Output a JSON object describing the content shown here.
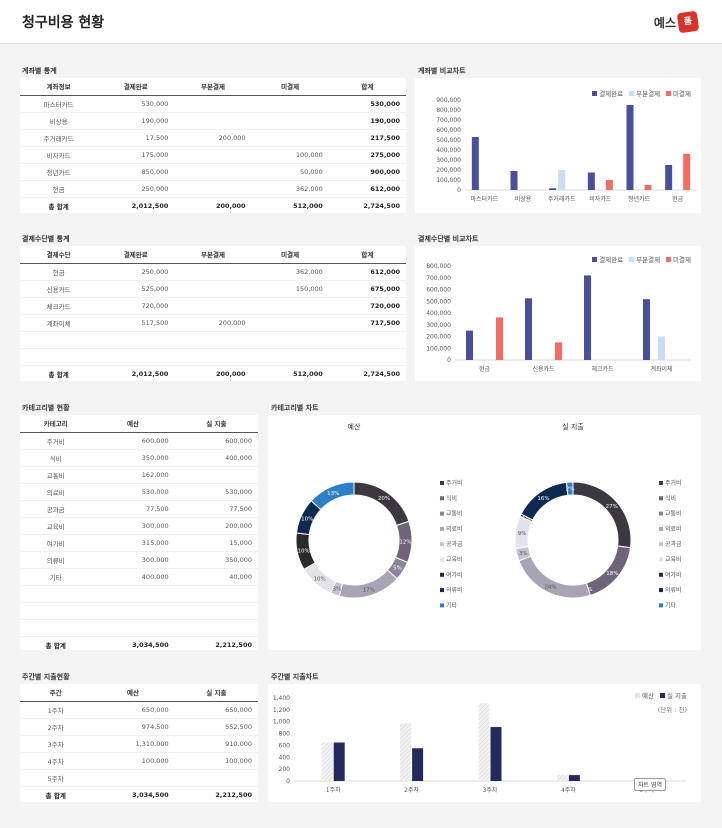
{
  "page": {
    "title": "청구비용 현황",
    "logo_text": "예스",
    "logo_badge": "폼"
  },
  "colors": {
    "complete": "#4a4f9a",
    "partial": "#c8ddf5",
    "unpaid": "#f26c63",
    "actual": "#252a5c",
    "budget": "#e6e6e6"
  },
  "account_stats": {
    "title": "계좌별 통계",
    "headers": [
      "계좌정보",
      "결제완료",
      "부분결제",
      "미결제",
      "합계"
    ],
    "rows": [
      [
        "마스터카드",
        "530,000",
        "",
        "",
        "530,000"
      ],
      [
        "비상용",
        "190,000",
        "",
        "",
        "190,000"
      ],
      [
        "주거래카드",
        "17,500",
        "200,000",
        "",
        "217,500"
      ],
      [
        "비자카드",
        "175,000",
        "",
        "100,000",
        "275,000"
      ],
      [
        "청년카드",
        "850,000",
        "",
        "50,000",
        "900,000"
      ],
      [
        "현금",
        "250,000",
        "",
        "362,000",
        "612,000"
      ]
    ],
    "total": [
      "총 합계",
      "2,012,500",
      "200,000",
      "512,000",
      "2,724,500"
    ]
  },
  "account_chart": {
    "title": "계좌별 비교차트",
    "chart_data": {
      "type": "bar",
      "categories": [
        "마스터카드",
        "비상용",
        "주거래카드",
        "비자카드",
        "청년카드",
        "현금"
      ],
      "series": [
        {
          "name": "결제완료",
          "values": [
            530000,
            190000,
            17500,
            175000,
            850000,
            250000
          ]
        },
        {
          "name": "부분결제",
          "values": [
            0,
            0,
            200000,
            0,
            0,
            0
          ]
        },
        {
          "name": "미결제",
          "values": [
            0,
            0,
            0,
            100000,
            50000,
            362000
          ]
        }
      ],
      "ylim": [
        0,
        900000
      ],
      "yticks": [
        "900,000",
        "800,000",
        "700,000",
        "600,000",
        "500,000",
        "400,000",
        "300,000",
        "200,000",
        "100,000",
        "0"
      ]
    }
  },
  "payment_stats": {
    "title": "결제수단별 통계",
    "headers": [
      "결제수단",
      "결제완료",
      "부분결제",
      "미결제",
      "합계"
    ],
    "rows": [
      [
        "현금",
        "250,000",
        "",
        "362,000",
        "612,000"
      ],
      [
        "신용카드",
        "525,000",
        "",
        "150,000",
        "675,000"
      ],
      [
        "체크카드",
        "720,000",
        "",
        "",
        "720,000"
      ],
      [
        "계좌이체",
        "517,500",
        "200,000",
        "",
        "717,500"
      ],
      [
        "",
        "",
        "",
        "",
        ""
      ],
      [
        "",
        "",
        "",
        "",
        ""
      ]
    ],
    "total": [
      "총 합계",
      "2,012,500",
      "200,000",
      "512,000",
      "2,724,500"
    ]
  },
  "payment_chart": {
    "title": "결제수단별 비교차트",
    "chart_data": {
      "type": "bar",
      "categories": [
        "현금",
        "신용카드",
        "체크카드",
        "계좌이체"
      ],
      "series": [
        {
          "name": "결제완료",
          "values": [
            250000,
            525000,
            720000,
            517500
          ]
        },
        {
          "name": "부분결제",
          "values": [
            0,
            0,
            0,
            200000
          ]
        },
        {
          "name": "미결제",
          "values": [
            362000,
            150000,
            0,
            0
          ]
        }
      ],
      "ylim": [
        0,
        800000
      ],
      "yticks": [
        "800,000",
        "700,000",
        "600,000",
        "500,000",
        "400,000",
        "300,000",
        "200,000",
        "100,000",
        "0"
      ]
    }
  },
  "category_stats": {
    "title": "카테고리별 현황",
    "headers": [
      "카테고리",
      "예산",
      "실 지출"
    ],
    "rows": [
      [
        "주거비",
        "600,000",
        "600,000"
      ],
      [
        "식비",
        "350,000",
        "400,000"
      ],
      [
        "교통비",
        "162,000",
        ""
      ],
      [
        "의료비",
        "530,000",
        "530,000"
      ],
      [
        "공과금",
        "77,500",
        "77,500"
      ],
      [
        "교육비",
        "300,000",
        "200,000"
      ],
      [
        "여가비",
        "315,000",
        "15,000"
      ],
      [
        "의류비",
        "300,000",
        "350,000"
      ],
      [
        "기타",
        "400,000",
        "40,000"
      ],
      [
        "",
        "",
        ""
      ],
      [
        "",
        "",
        ""
      ],
      [
        "",
        "",
        ""
      ]
    ],
    "total": [
      "총 합계",
      "3,034,500",
      "2,212,500"
    ]
  },
  "category_chart": {
    "title": "카테고리별 차트",
    "chart_data": {
      "type": "pie",
      "categories": [
        "주거비",
        "식비",
        "교통비",
        "의료비",
        "공과금",
        "교육비",
        "여가비",
        "의류비",
        "기타"
      ],
      "colors": [
        "#3d3742",
        "#6f6479",
        "#8c8398",
        "#aaa3b6",
        "#c7c2d0",
        "#e4e1ea",
        "#2b2b2b",
        "#0e2a52",
        "#2d7fc8"
      ],
      "legend": [
        "주거비",
        "식비",
        "교통비",
        "의료비",
        "공과금",
        "교육비",
        "여가비",
        "의류비",
        "기타"
      ],
      "charts": [
        {
          "title": "예산",
          "values": [
            600000,
            350000,
            162000,
            530000,
            77500,
            300000,
            315000,
            300000,
            400000
          ],
          "labels": [
            "20%",
            "12%",
            "5%",
            "17%",
            "3%",
            "10%",
            "10%",
            "10%",
            "13%"
          ]
        },
        {
          "title": "실 지출",
          "values": [
            600000,
            400000,
            0,
            530000,
            77500,
            200000,
            15000,
            350000,
            40000
          ],
          "labels": [
            "27%",
            "18%",
            "0%",
            "24%",
            "3%",
            "9%",
            "1%",
            "16%",
            "2%"
          ]
        }
      ]
    }
  },
  "weekly_stats": {
    "title": "주간별 지출현황",
    "headers": [
      "주간",
      "예산",
      "실 지출"
    ],
    "rows": [
      [
        "1주차",
        "650,000",
        "650,000"
      ],
      [
        "2주차",
        "974,500",
        "552,500"
      ],
      [
        "3주차",
        "1,310,000",
        "910,000"
      ],
      [
        "4주차",
        "100,000",
        "100,000"
      ],
      [
        "5주차",
        "",
        ""
      ]
    ],
    "total": [
      "총 합계",
      "3,034,500",
      "2,212,500"
    ]
  },
  "weekly_chart": {
    "title": "주간별 지출차트",
    "unit_note": "(단위 : 천)",
    "tooltip": "차트 영역",
    "chart_data": {
      "type": "bar",
      "categories": [
        "1주차",
        "2주차",
        "3주차",
        "4주차",
        "5주차"
      ],
      "series": [
        {
          "name": "예산",
          "values": [
            650,
            974.5,
            1310,
            100,
            0
          ]
        },
        {
          "name": "실 지출",
          "values": [
            650,
            552.5,
            910,
            100,
            0
          ]
        }
      ],
      "ylim": [
        0,
        1400
      ],
      "yticks": [
        "1,400",
        "1,200",
        "1,000",
        "800",
        "600",
        "400",
        "200",
        "0"
      ]
    }
  }
}
